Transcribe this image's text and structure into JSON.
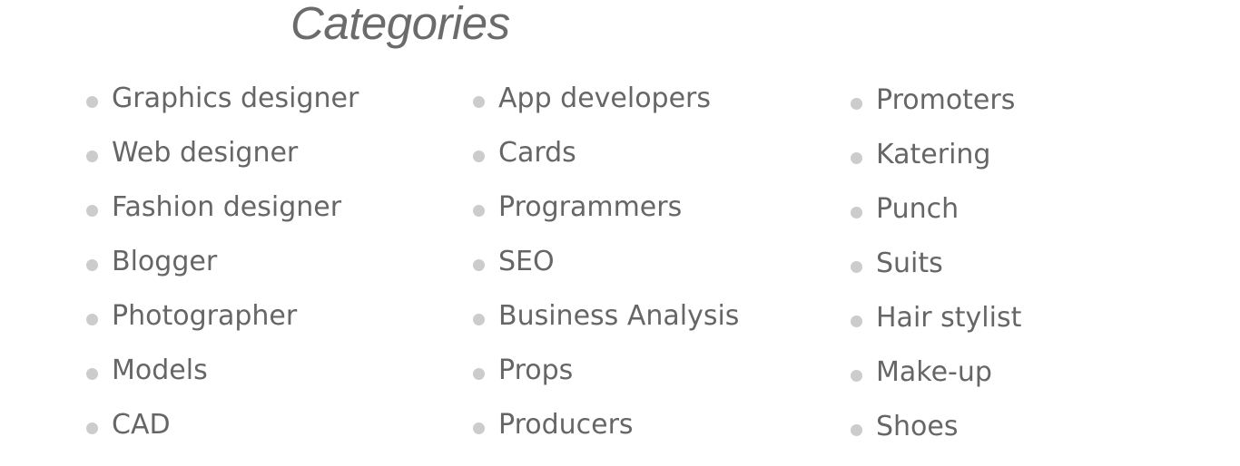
{
  "heading": "Categories",
  "colors": {
    "text": "#666666",
    "heading": "#6b6b6b",
    "bullet": "#cccccc",
    "background": "#ffffff"
  },
  "columns": [
    {
      "items": [
        "Graphics designer",
        "Web designer",
        "Fashion designer",
        "Blogger",
        "Photographer",
        "Models",
        "CAD"
      ]
    },
    {
      "items": [
        "App developers",
        "Cards",
        "Programmers",
        "SEO",
        "Business Analysis",
        "Props",
        "Producers"
      ]
    },
    {
      "items": [
        "Promoters",
        "Katering",
        "Punch",
        "Suits",
        "Hair stylist",
        "Make-up",
        "Shoes"
      ]
    }
  ]
}
